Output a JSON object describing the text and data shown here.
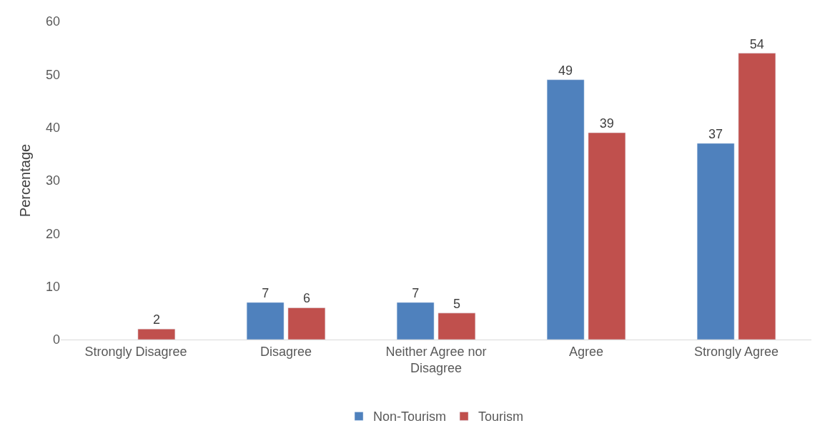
{
  "chart_data": {
    "type": "bar",
    "ylabel": "Percentage",
    "categories": [
      "Strongly Disagree",
      "Disagree",
      "Neither Agree nor Disagree",
      "Agree",
      "Strongly Agree"
    ],
    "series": [
      {
        "name": "Non-Tourism",
        "color": "#4f81bd",
        "values": [
          null,
          7,
          7,
          49,
          37
        ]
      },
      {
        "name": "Tourism",
        "color": "#c0504d",
        "values": [
          2,
          6,
          5,
          39,
          54
        ]
      }
    ],
    "ylim": [
      0,
      60
    ],
    "yticks": [
      0,
      10,
      20,
      30,
      40,
      50,
      60
    ],
    "grid": false,
    "legend": "bottom",
    "data_labels": true
  }
}
